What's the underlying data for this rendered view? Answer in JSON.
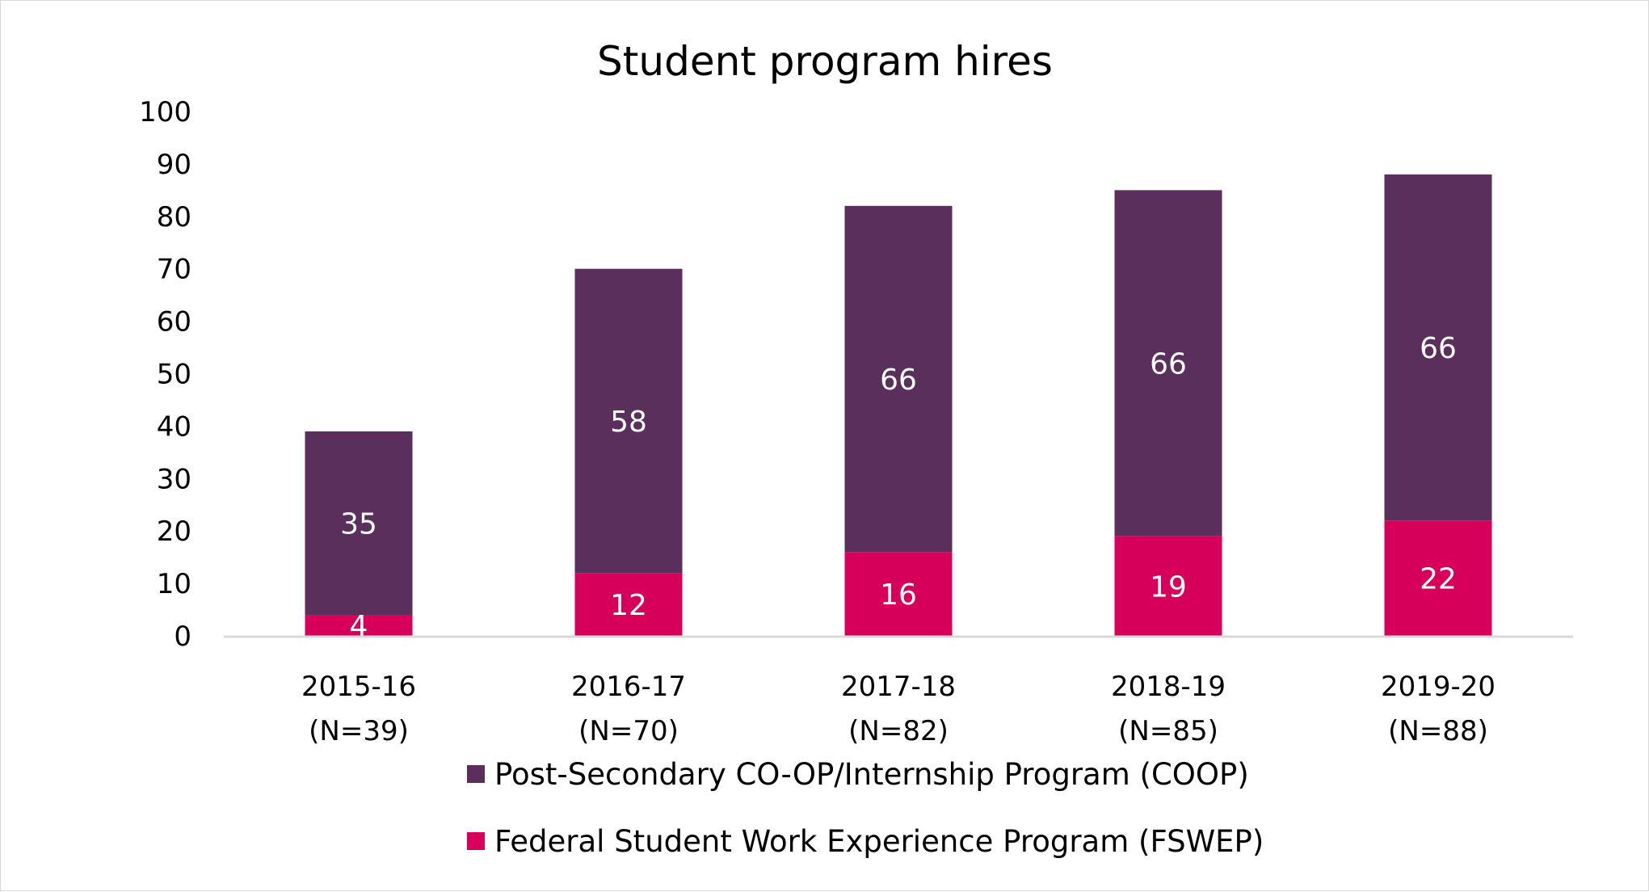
{
  "chart_data": {
    "type": "bar",
    "stacked": true,
    "title": "Student program hires",
    "categories": [
      [
        "2015-16",
        "(N=39)"
      ],
      [
        "2016-17",
        "(N=70)"
      ],
      [
        "2017-18",
        "(N=82)"
      ],
      [
        "2018-19",
        "(N=85)"
      ],
      [
        "2019-20",
        "(N=88)"
      ]
    ],
    "series": [
      {
        "name": "Federal Student Work Experience Program (FSWEP)",
        "values": [
          4,
          12,
          16,
          19,
          22
        ],
        "color": "#D6005A"
      },
      {
        "name": "Post-Secondary CO-OP/Internship Program (COOP)",
        "values": [
          35,
          58,
          66,
          66,
          66
        ],
        "color": "#5B2F5C"
      }
    ],
    "ylim": [
      0,
      100
    ],
    "yticks": [
      0,
      10,
      20,
      30,
      40,
      50,
      60,
      70,
      80,
      90,
      100
    ],
    "grid": false,
    "data_labels": true,
    "legend_position": "bottom",
    "legend_order": [
      1,
      0
    ]
  }
}
